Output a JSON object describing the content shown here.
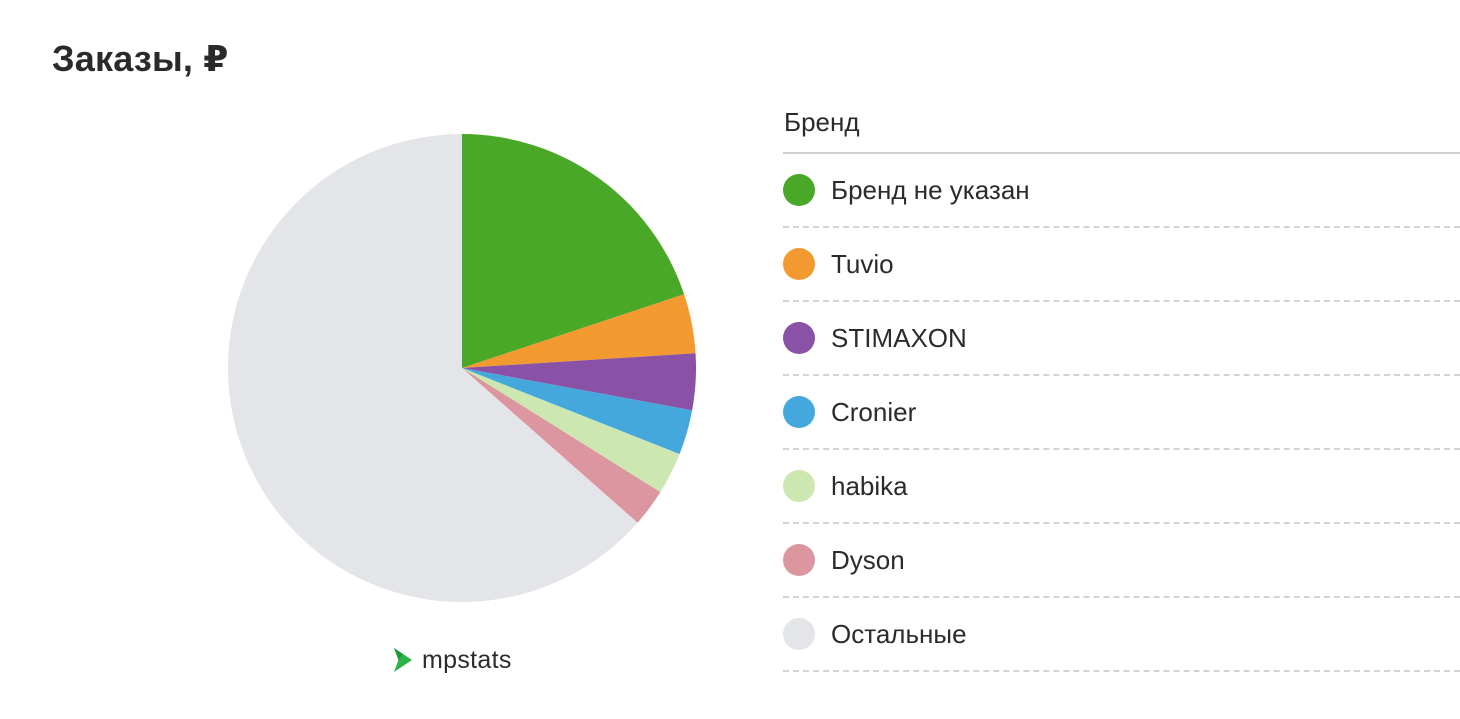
{
  "chart_data": {
    "type": "pie",
    "title": "Заказы, ₽",
    "legend_header": "Бренд",
    "legend_position": "right",
    "series": [
      {
        "name": "Бренд не указан",
        "value": 19.9,
        "color": "#4aa829"
      },
      {
        "name": "Tuvio",
        "value": 4.1,
        "color": "#f29a30"
      },
      {
        "name": "STIMAXON",
        "value": 3.9,
        "color": "#8a52a6"
      },
      {
        "name": "Cronier",
        "value": 3.1,
        "color": "#45a8dc"
      },
      {
        "name": "habika",
        "value": 2.9,
        "color": "#cce8b0"
      },
      {
        "name": "Dyson",
        "value": 2.6,
        "color": "#dc96a0"
      },
      {
        "name": "Остальные",
        "value": 63.5,
        "color": "#e4e5e9"
      }
    ]
  },
  "branding": {
    "logo_text": "mpstats",
    "logo_color": "#2bb34a",
    "logo_icon": "play-triangle-icon"
  }
}
